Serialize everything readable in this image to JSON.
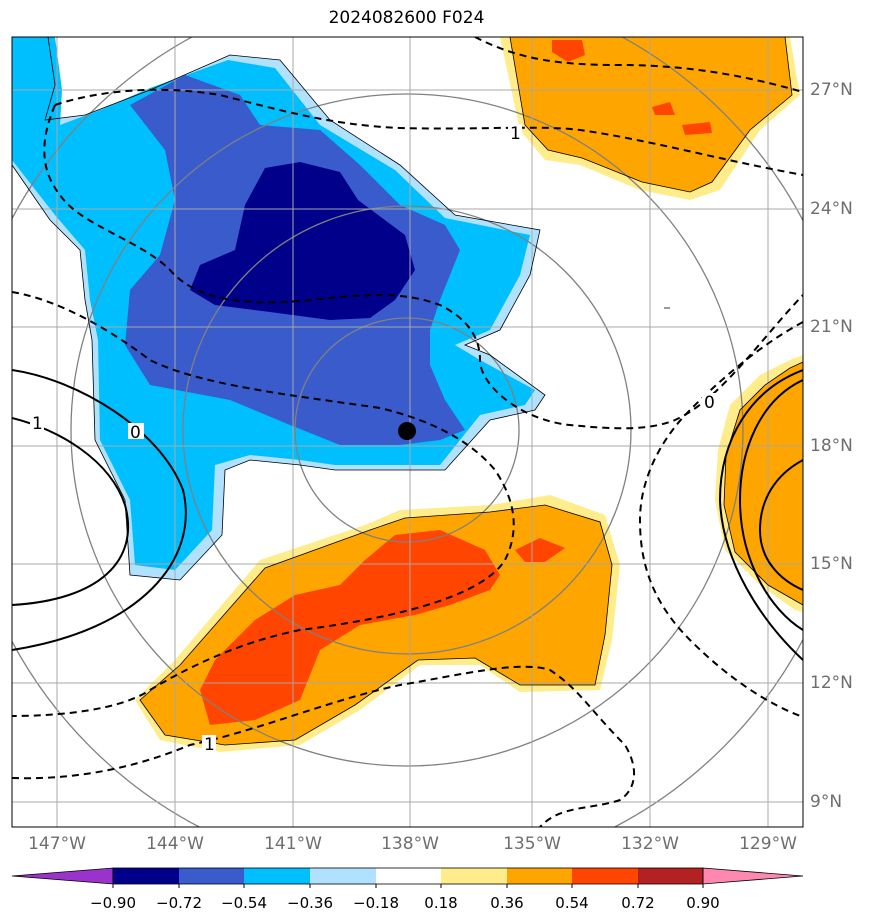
{
  "title": "2024082600 F024",
  "lat_labels": [
    "27°N",
    "24°N",
    "21°N",
    "18°N",
    "15°N",
    "12°N",
    "9°N"
  ],
  "lon_labels": [
    "147°W",
    "144°W",
    "141°W",
    "138°W",
    "135°W",
    "132°W",
    "129°W"
  ],
  "colorbar": {
    "ticks": [
      "−0.90",
      "−0.72",
      "−0.54",
      "−0.36",
      "−0.18",
      "0.18",
      "0.36",
      "0.54",
      "0.72",
      "0.90"
    ],
    "colors": [
      "#9933cc",
      "#00008b",
      "#3a5bcc",
      "#00bfff",
      "#b0e2ff",
      "#ffffff",
      "#ffec8b",
      "#ffa500",
      "#ff4500",
      "#b22222",
      "#ff88b0"
    ]
  },
  "contour_labels": {
    "left_one": "1",
    "left_zero": "0",
    "top_one": "1",
    "bottom_one": "1",
    "right_zero": "0"
  },
  "storm_center": {
    "lat": 18.4,
    "lon": -138.0
  }
}
